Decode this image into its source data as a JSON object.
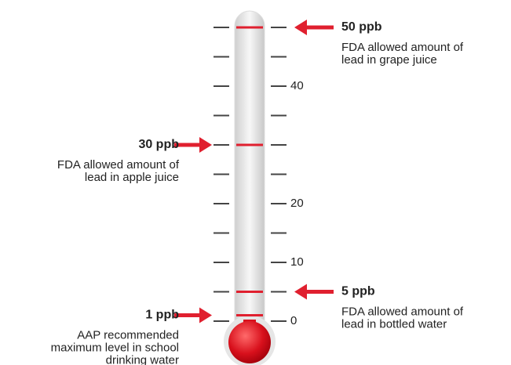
{
  "chart_data": {
    "type": "thermometer",
    "color": "#e0202f",
    "ylim": [
      0,
      50
    ],
    "yticks": [
      0,
      10,
      20,
      40
    ],
    "minor_ticks": [
      0,
      5,
      10,
      15,
      20,
      25,
      30,
      35,
      40,
      45,
      50
    ],
    "markers": [
      {
        "value": 50,
        "label": "50 ppb",
        "side": "right",
        "text": [
          "FDA allowed amount of",
          "lead in grape juice"
        ]
      },
      {
        "value": 30,
        "label": "30 ppb",
        "side": "left",
        "text": [
          "FDA allowed amount of",
          "lead in apple juice"
        ]
      },
      {
        "value": 5,
        "label": "5 ppb",
        "side": "right",
        "text": [
          "FDA allowed amount of",
          "lead in bottled water"
        ]
      },
      {
        "value": 1,
        "label": "1 ppb",
        "side": "left",
        "text": [
          "AAP recommended",
          "maximum level in school",
          "drinking water"
        ]
      }
    ]
  }
}
